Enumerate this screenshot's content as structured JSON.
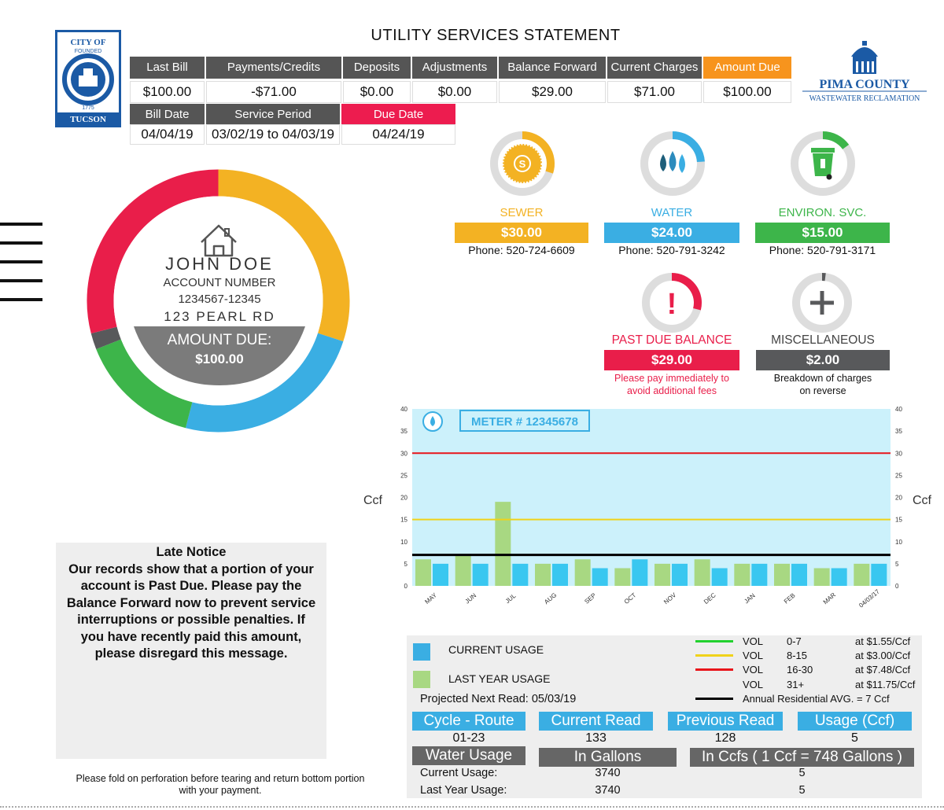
{
  "title": "UTILITY SERVICES STATEMENT",
  "logo_tucson": {
    "top": "CITY OF",
    "ring": "FOUNDED",
    "year": "1775",
    "bottom": "TUCSON"
  },
  "logo_pima": {
    "name": "PIMA COUNTY",
    "sub": "WASTEWATER RECLAMATION"
  },
  "header": {
    "row1_labels": [
      "Last Bill",
      "Payments/Credits",
      "Deposits",
      "Adjustments",
      "Balance Forward",
      "Current Charges",
      "Amount Due"
    ],
    "row1_values": [
      "$100.00",
      "-$71.00",
      "$0.00",
      "$0.00",
      "$29.00",
      "$71.00",
      "$100.00"
    ],
    "row2_labels": [
      "Bill Date",
      "Service Period",
      "Due Date"
    ],
    "row2_values": [
      "04/04/19",
      "03/02/19 to 04/03/19",
      "04/24/19"
    ]
  },
  "account": {
    "name": "JOHN DOE",
    "number_label": "ACCOUNT NUMBER",
    "number": "1234567-12345",
    "address": "123 PEARL RD",
    "amount_label": "AMOUNT DUE:",
    "amount": "$100.00",
    "donut_segments": [
      {
        "name": "sewer",
        "value": 30,
        "color": "#f3b223"
      },
      {
        "name": "water",
        "value": 24,
        "color": "#3aaee3"
      },
      {
        "name": "environ",
        "value": 15,
        "color": "#3db54a"
      },
      {
        "name": "misc",
        "value": 2,
        "color": "#58595b"
      },
      {
        "name": "past_due",
        "value": 29,
        "color": "#e91e4a"
      }
    ]
  },
  "services": [
    {
      "label": "SEWER",
      "amount": "$30.00",
      "phone": "Phone: 520-724-6609",
      "color": "#f3b223",
      "fraction": 0.3,
      "icon": "sewer-icon"
    },
    {
      "label": "WATER",
      "amount": "$24.00",
      "phone": "Phone: 520-791-3242",
      "color": "#3aaee3",
      "fraction": 0.24,
      "icon": "water-drops-icon"
    },
    {
      "label": "ENVIRON. SVC.",
      "amount": "$15.00",
      "phone": "Phone: 520-791-3171",
      "color": "#3db54a",
      "fraction": 0.15,
      "icon": "trash-bin-icon"
    }
  ],
  "extras": [
    {
      "label": "PAST DUE BALANCE",
      "amount": "$29.00",
      "note1": "Please pay immediately to",
      "note2": "avoid additional fees",
      "color": "#e91e4a",
      "fraction": 0.29,
      "icon": "exclamation-icon"
    },
    {
      "label": "MISCELLANEOUS",
      "amount": "$2.00",
      "note1": "Breakdown of charges",
      "note2": "on reverse",
      "color": "#58595b",
      "fraction": 0.02,
      "icon": "plus-icon"
    }
  ],
  "chart_data": {
    "type": "bar",
    "meter_label": "METER # 12345678",
    "ylabel": "Ccf",
    "ylim": [
      0,
      40
    ],
    "yticks": [
      0,
      5,
      10,
      15,
      20,
      25,
      30,
      35,
      40
    ],
    "categories": [
      "MAY",
      "JUN",
      "JUL",
      "AUG",
      "SEP",
      "OCT",
      "NOV",
      "DEC",
      "JAN",
      "FEB",
      "MAR",
      "04/03/17"
    ],
    "series": [
      {
        "name": "LAST YEAR USAGE",
        "color": "#a8d882",
        "values": [
          6,
          7,
          19,
          5,
          6,
          4,
          5,
          6,
          5,
          5,
          4,
          5
        ]
      },
      {
        "name": "CURRENT USAGE",
        "color": "#39c7f0",
        "values": [
          5,
          5,
          5,
          5,
          4,
          6,
          5,
          4,
          5,
          5,
          4,
          5
        ]
      }
    ],
    "reference_lines": [
      {
        "value": 30,
        "color": "#e8151b"
      },
      {
        "value": 15,
        "color": "#f0d21a"
      },
      {
        "value": 7,
        "color": "#000000"
      }
    ],
    "background": "#ccf1fb"
  },
  "late_notice": {
    "title": "Late Notice",
    "lines": [
      "Our records show that a portion of your",
      "account is Past Due. Please pay the",
      "Balance Forward now to prevent service",
      "interruptions or possible penalties. If",
      "you have recently paid this amount,",
      "please disregard this message."
    ]
  },
  "fold_note": {
    "line1": "Please fold on perforation before tearing and return bottom portion",
    "line2": "with your payment."
  },
  "usage_panel": {
    "legend": [
      {
        "label": "CURRENT USAGE",
        "color": "#3aaee3"
      },
      {
        "label": "LAST YEAR USAGE",
        "color": "#a8d882"
      }
    ],
    "rates": [
      {
        "vol": "VOL",
        "range": "0-7",
        "rate": "at $1.55/Ccf",
        "color": "#22d12e"
      },
      {
        "vol": "VOL",
        "range": "8-15",
        "rate": "at $3.00/Ccf",
        "color": "#f0d21a"
      },
      {
        "vol": "VOL",
        "range": "16-30",
        "rate": "at $7.48/Ccf",
        "color": "#e8151b"
      },
      {
        "vol": "VOL",
        "range": "31+",
        "rate": "at $11.75/Ccf",
        "color": "#ffffff"
      }
    ],
    "avg_note": "Annual Residential AVG. = 7 Ccf",
    "projected": "Projected Next Read: 05/03/19",
    "read_labels": [
      "Cycle - Route",
      "Current Read",
      "Previous Read",
      "Usage (Ccf)"
    ],
    "read_values": [
      "01-23",
      "133",
      "128",
      "5"
    ],
    "gal_labels": [
      "Water Usage",
      "In Gallons",
      "In Ccfs ( 1 Ccf = 748 Gallons )"
    ],
    "rows": [
      {
        "label": "Current Usage:",
        "gallons": "3740",
        "ccfs": "5"
      },
      {
        "label": "Last Year Usage:",
        "gallons": "3740",
        "ccfs": "5"
      }
    ]
  }
}
